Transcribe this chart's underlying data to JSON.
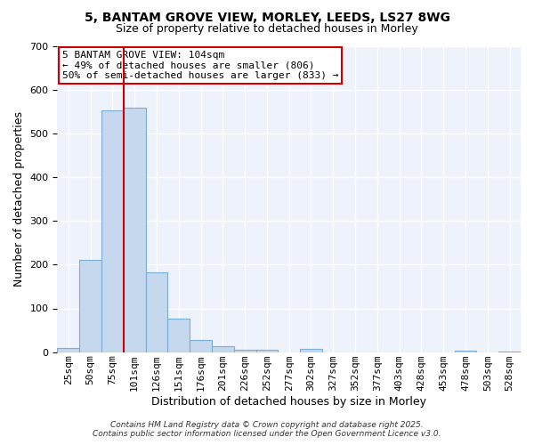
{
  "title_line1": "5, BANTAM GROVE VIEW, MORLEY, LEEDS, LS27 8WG",
  "title_line2": "Size of property relative to detached houses in Morley",
  "xlabel": "Distribution of detached houses by size in Morley",
  "ylabel": "Number of detached properties",
  "bar_labels": [
    "25sqm",
    "50sqm",
    "75sqm",
    "101sqm",
    "126sqm",
    "151sqm",
    "176sqm",
    "201sqm",
    "226sqm",
    "252sqm",
    "277sqm",
    "302sqm",
    "327sqm",
    "352sqm",
    "377sqm",
    "403sqm",
    "428sqm",
    "453sqm",
    "478sqm",
    "503sqm",
    "528sqm"
  ],
  "bar_values": [
    10,
    210,
    553,
    558,
    183,
    76,
    28,
    13,
    5,
    6,
    0,
    8,
    0,
    0,
    0,
    0,
    0,
    0,
    4,
    0,
    2
  ],
  "bar_color": "#c5d8ee",
  "bar_edge_color": "#7aaed6",
  "background_color": "#ffffff",
  "plot_bg_color": "#eef2fb",
  "grid_color": "#ffffff",
  "vline_color": "#cc0000",
  "vline_x_index": 3,
  "annotation_line1": "5 BANTAM GROVE VIEW: 104sqm",
  "annotation_line2": "← 49% of detached houses are smaller (806)",
  "annotation_line3": "50% of semi-detached houses are larger (833) →",
  "annotation_box_facecolor": "#ffffff",
  "annotation_box_edgecolor": "#cc0000",
  "ylim": [
    0,
    700
  ],
  "yticks": [
    0,
    100,
    200,
    300,
    400,
    500,
    600,
    700
  ],
  "title_fontsize": 10,
  "subtitle_fontsize": 9,
  "xlabel_fontsize": 9,
  "ylabel_fontsize": 9,
  "tick_fontsize": 8,
  "ann_fontsize": 8,
  "footer_line1": "Contains HM Land Registry data © Crown copyright and database right 2025.",
  "footer_line2": "Contains public sector information licensed under the Open Government Licence v3.0."
}
